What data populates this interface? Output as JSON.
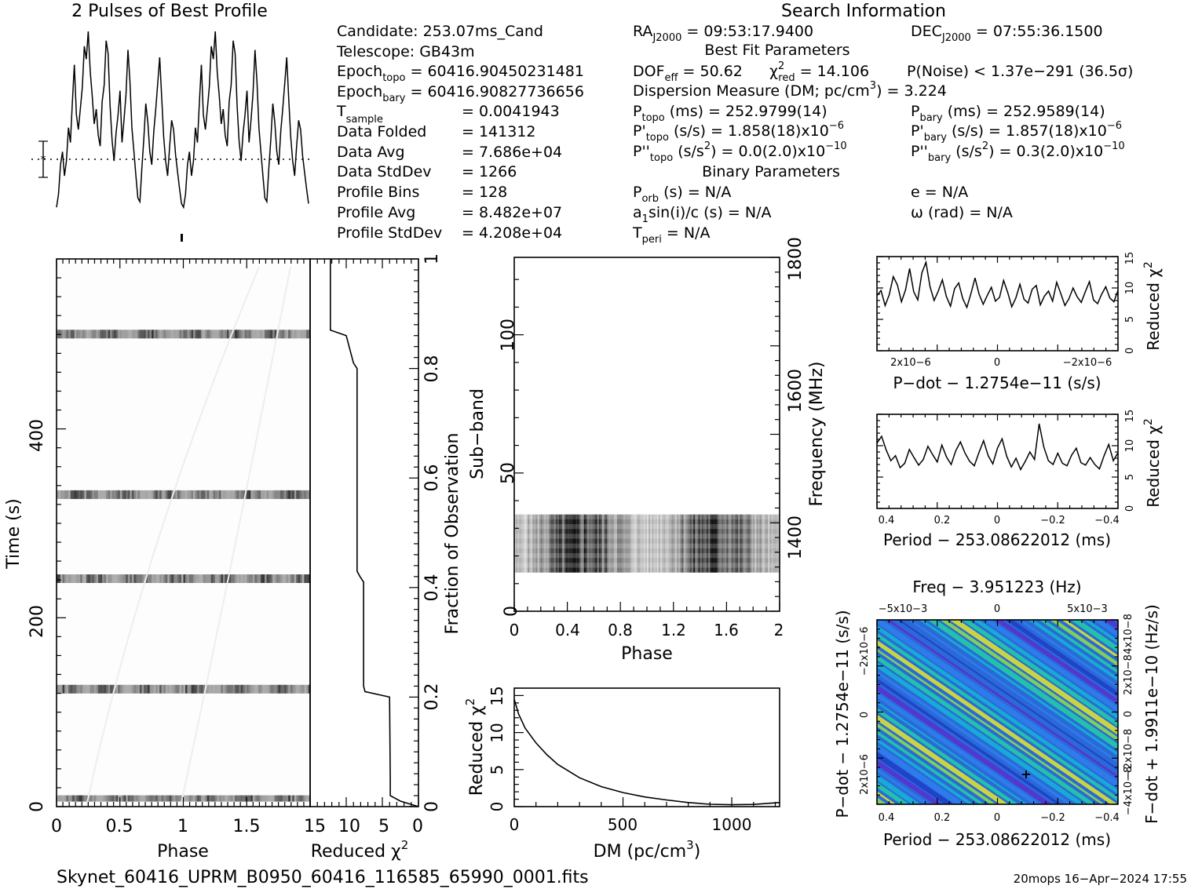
{
  "header": {
    "profile_title": "2 Pulses of Best Profile",
    "search_title": "Search Information",
    "best_fit_title": "Best Fit Parameters",
    "binary_title": "Binary Parameters"
  },
  "info_left": [
    {
      "label": "Candidate:  253.07ms_Cand"
    },
    {
      "label": "Telescope:  GB43m"
    },
    {
      "base": "Epoch",
      "sub": "topo",
      "rest": " = 60416.90450231481"
    },
    {
      "base": "Epoch",
      "sub": "bary",
      "rest": " = 60416.90827736656"
    },
    {
      "base": "T",
      "sub": "sample",
      "rest": "",
      "value": "=   0.0041943"
    },
    {
      "label": "Data Folded",
      "value": "=   141312"
    },
    {
      "label": "Data Avg",
      "value": "=   7.686e+04"
    },
    {
      "label": "Data StdDev",
      "value": "=   1266"
    },
    {
      "label": "Profile Bins",
      "value": "=   128"
    },
    {
      "label": "Profile Avg",
      "value": "=   8.482e+07"
    },
    {
      "label": "Profile StdDev",
      "value": "=   4.208e+04"
    }
  ],
  "info_mid": {
    "ra": {
      "base": "RA",
      "sub": "J2000",
      "rest": " = 09:53:17.9400"
    },
    "dec": {
      "base": "DEC",
      "sub": "J2000",
      "rest": " = 07:55:36.1500"
    },
    "dof": "DOF",
    "dof_sub": "eff",
    "dof_val": " = 50.62",
    "chi_sym": "χ",
    "chi_sup": "2",
    "chi_sub": "red",
    "chi_val": " = 14.106",
    "pnoise": "P(Noise) < 1.37e−291  (36.5σ)",
    "dm": "Dispersion Measure (DM; pc/cm",
    "dm_sup": "3",
    "dm_val": ") = 3.224",
    "ptopo": {
      "base": "P",
      "sub": "topo",
      "rest": " (ms) =  252.9799(14)"
    },
    "pbary": {
      "base": "P",
      "sub": "bary",
      "rest": " (ms) =  252.9589(14)"
    },
    "pdtopo": {
      "base": "P'",
      "sub": "topo",
      "rest": " (s/s) =  1.858(18)x10",
      "sup": "−6"
    },
    "pdbary": {
      "base": "P'",
      "sub": "bary",
      "rest": " (s/s) =  1.857(18)x10",
      "sup": "−6"
    },
    "pddtopo": {
      "base": "P''",
      "sub": "topo",
      "rest": " (s/s",
      "sup2": "2",
      "rest2": ") = 0.0(2.0)x10",
      "sup": "−10"
    },
    "pddbary": {
      "base": "P''",
      "sub": "bary",
      "rest": " (s/s",
      "sup2": "2",
      "rest2": ") =  0.3(2.0)x10",
      "sup": "−10"
    },
    "porb": {
      "base": "P",
      "sub": "orb",
      "rest": " (s) = N/A"
    },
    "a1": {
      "base": "a",
      "sub": "1",
      "rest": "sin(i)/c (s) = N/A"
    },
    "tperi": {
      "base": "T",
      "sub": "peri",
      "rest": " = N/A"
    },
    "ecc": "e = N/A",
    "omega": "ω (rad) = N/A"
  },
  "footer": {
    "filename": "Skynet_60416_UPRM_B0950_60416_116585_65990_0001.fits",
    "stamp": "20mops 16−Apr−2024 17:55"
  },
  "labels": {
    "phase": "Phase",
    "time": "Time (s)",
    "reduced_chi2": "Reduced χ",
    "chi_sup": "2",
    "fraction": "Fraction of Observation",
    "subband": "Sub−band",
    "frequency": "Frequency (MHz)",
    "dm_axis": "DM (pc/cm",
    "dm_axis_sup": "3",
    "dm_axis_end": ")",
    "pdot_axis": "P−dot − 1.2754e−11 (s/s)",
    "period_axis": "Period − 253.08622012 (ms)",
    "freq_axis": "Freq − 3.951223 (Hz)",
    "fdot_axis": "F−dot + 1.9911e−10 (Hz/s)",
    "pdot_left": "P−dot − 1.2754e−11 (s/s)"
  },
  "chart_data": [
    {
      "id": "profile",
      "type": "line",
      "title": "2 Pulses of Best Profile",
      "x": "phase 0-2 (2 cycles, 128 bins each)",
      "y_profile_shape": [
        0.05,
        0.12,
        0.28,
        0.35,
        0.22,
        0.3,
        0.48,
        0.4,
        0.62,
        0.82,
        0.55,
        0.47,
        0.58,
        0.7,
        0.92,
        0.85,
        1.0,
        0.78,
        0.65,
        0.5,
        0.58,
        0.44,
        0.38,
        0.62,
        0.71,
        0.95,
        0.88,
        0.6,
        0.41,
        0.3,
        0.45,
        0.55,
        0.68,
        0.4,
        0.52,
        0.66,
        0.9,
        0.73,
        0.48,
        0.35,
        0.22,
        0.1,
        0.08,
        0.26,
        0.42,
        0.61,
        0.51,
        0.35,
        0.28,
        0.46,
        0.58,
        0.72,
        0.86,
        0.64,
        0.43,
        0.3,
        0.22,
        0.38,
        0.52,
        0.47,
        0.33,
        0.24,
        0.15,
        0.07
      ],
      "mean_marker": "dotted line with error bar"
    },
    {
      "id": "time_phase",
      "type": "heatmap",
      "xlabel": "Phase",
      "ylabel": "Time (s)",
      "xlim": [
        0,
        2
      ],
      "ylim": [
        0,
        580
      ],
      "xticks": [
        "0",
        "0.5",
        "1",
        "1.5"
      ],
      "yticks": [
        "0",
        "200",
        "400"
      ],
      "bright_rows_time": [
        7,
        124,
        241,
        330,
        500
      ]
    },
    {
      "id": "time_chi2",
      "type": "line",
      "xlabel": "Reduced χ2",
      "xlim": [
        15,
        0
      ],
      "xticks": [
        "15",
        "10",
        "5",
        "0"
      ],
      "ylabel": "Fraction of Observation",
      "yticks": [
        "0",
        "0.2",
        "0.4",
        "0.6",
        "0.8",
        "1"
      ],
      "fraction": [
        0.0,
        0.01,
        0.02,
        0.05,
        0.2,
        0.21,
        0.22,
        0.41,
        0.42,
        0.43,
        0.8,
        0.81,
        0.86,
        0.87,
        1.0
      ],
      "chi2": [
        0.0,
        2.5,
        3.9,
        3.9,
        4.0,
        7.4,
        7.6,
        7.6,
        8.1,
        8.5,
        8.5,
        9.0,
        10.0,
        12.2,
        12.2
      ]
    },
    {
      "id": "subband_phase",
      "type": "heatmap",
      "xlabel": "Phase",
      "ylabel": "Sub−band",
      "xlim": [
        0,
        2
      ],
      "ylim": [
        0,
        128
      ],
      "xticks": [
        "0",
        "0.4",
        "0.8",
        "1.2",
        "1.6",
        "2"
      ],
      "yticks": [
        "0",
        "50",
        "100"
      ],
      "y2label": "Frequency (MHz)",
      "y2ticks": [
        "1400",
        "1600",
        "1800"
      ],
      "filled_subbands": [
        14,
        35
      ]
    },
    {
      "id": "dm_chi2",
      "type": "line",
      "xlabel": "DM (pc/cm3)",
      "ylabel": "Reduced χ2",
      "xlim": [
        0,
        1220
      ],
      "ylim": [
        0,
        16
      ],
      "xticks": [
        "0",
        "500",
        "1000"
      ],
      "yticks": [
        "0",
        "5",
        "10",
        "15"
      ],
      "x": [
        0,
        20,
        50,
        100,
        150,
        200,
        300,
        400,
        500,
        600,
        700,
        800,
        900,
        1000,
        1100,
        1220
      ],
      "y": [
        14.5,
        12.5,
        10.6,
        8.6,
        7.0,
        5.7,
        3.9,
        2.7,
        1.9,
        1.3,
        0.9,
        0.55,
        0.32,
        0.25,
        0.3,
        0.55
      ]
    },
    {
      "id": "pdot_chi2",
      "type": "line",
      "xlabel": "P−dot − 1.2754e−11 (s/s)",
      "ylabel": "Reduced χ2",
      "ylim": [
        0,
        15
      ],
      "xticks": [
        "2x10−6",
        "0",
        "−2x10−6"
      ],
      "yticks": [
        "0",
        "5",
        "10",
        "15"
      ],
      "y": [
        8.8,
        9.6,
        7.2,
        8.9,
        11.8,
        10.5,
        7.8,
        9.7,
        13.1,
        9.4,
        8.1,
        12.4,
        14.1,
        10.2,
        8.0,
        9.5,
        11.3,
        8.6,
        7.1,
        9.9,
        10.8,
        8.3,
        6.9,
        9.1,
        11.6,
        9.0,
        7.4,
        8.8,
        10.1,
        7.9,
        8.5,
        11.2,
        9.3,
        7.0,
        8.4,
        10.6,
        8.2,
        7.6,
        9.8,
        10.4,
        7.3,
        8.7,
        9.5,
        7.9,
        10.9,
        9.1,
        7.2,
        8.3,
        10.0,
        8.6,
        7.7,
        9.4,
        11.0,
        8.1,
        7.5,
        9.0,
        10.2,
        8.4,
        7.8,
        9.6
      ]
    },
    {
      "id": "period_chi2",
      "type": "line",
      "xlabel": "Period − 253.08622012 (ms)",
      "ylabel": "Reduced χ2",
      "ylim": [
        0,
        15
      ],
      "xticks": [
        "0.4",
        "0.2",
        "0",
        "−0.2",
        "−0.4"
      ],
      "yticks": [
        "0",
        "5",
        "10",
        "15"
      ],
      "y": [
        10.4,
        11.5,
        9.3,
        7.6,
        8.4,
        6.5,
        7.2,
        9.4,
        8.1,
        6.9,
        7.8,
        9.9,
        8.6,
        7.4,
        10.1,
        8.2,
        7.0,
        9.2,
        10.6,
        8.8,
        7.5,
        6.8,
        8.9,
        10.8,
        8.4,
        7.1,
        9.6,
        11.1,
        8.3,
        6.6,
        8.0,
        6.2,
        7.5,
        9.0,
        7.8,
        13.5,
        9.8,
        7.6,
        7.0,
        8.8,
        7.2,
        6.8,
        8.5,
        9.6,
        7.3,
        6.9,
        8.1,
        7.0,
        6.3,
        8.4,
        10.2,
        7.6,
        8.9
      ]
    },
    {
      "id": "period_pdot",
      "type": "heatmap",
      "xlabel": "Period − 253.08622012 (ms)",
      "ylabel": "P−dot − 1.2754e−11 (s/s)",
      "x2label": "Freq − 3.951223 (Hz)",
      "y2label": "F−dot + 1.9911e−10 (Hz/s)",
      "xticks": [
        "0.4",
        "0.2",
        "0",
        "−0.2",
        "−0.4"
      ],
      "x2ticks": [
        "−5x10−3",
        "0",
        "5x10−3"
      ],
      "yticks": [
        "2x10−6",
        "0",
        "−2x10−6"
      ],
      "y2ticks": [
        "−4x10−8",
        "−2x10−8",
        "0",
        "2x10−8",
        "4x10−8"
      ],
      "best": {
        "period": -0.1,
        "pdot": 0.0
      }
    }
  ]
}
